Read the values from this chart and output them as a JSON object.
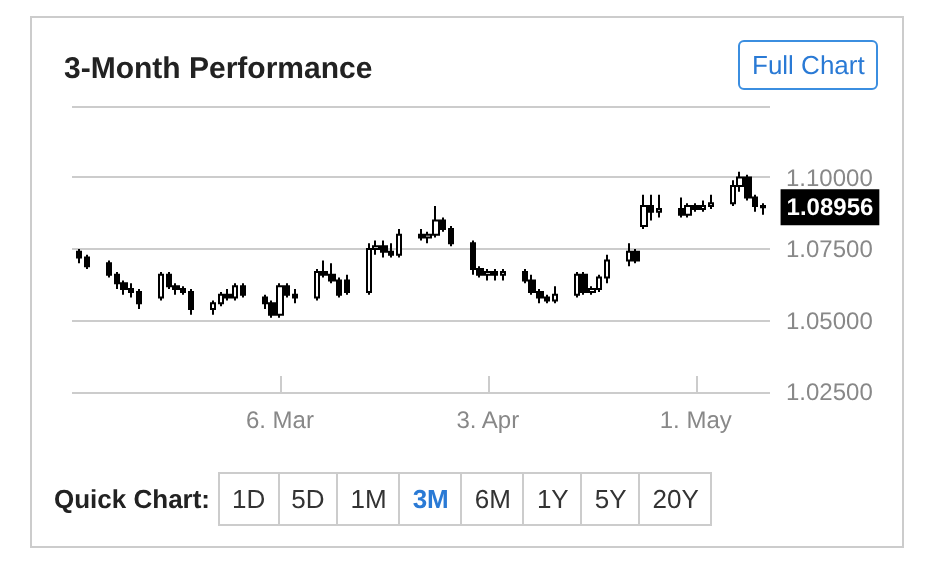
{
  "chart_data": {
    "type": "candlestick",
    "title": "3-Month Performance",
    "color": "#000000",
    "grid": "y",
    "x": [
      "--02-08",
      "--02-09",
      "--02-12",
      "--02-13",
      "--02-14",
      "--02-15",
      "--02-16",
      "--02-19",
      "--02-20",
      "--02-21",
      "--02-22",
      "--02-23",
      "--02-26",
      "--02-27",
      "--02-28",
      "--02-29",
      "--03-01",
      "--03-04",
      "--03-05",
      "--03-06",
      "--03-07",
      "--03-08",
      "--03-11",
      "--03-12",
      "--03-13",
      "--03-14",
      "--03-15",
      "--03-18",
      "--03-19",
      "--03-20",
      "--03-21",
      "--03-22",
      "--03-25",
      "--03-26",
      "--03-27",
      "--03-28",
      "--03-29",
      "--04-01",
      "--04-02",
      "--04-03",
      "--04-04",
      "--04-05",
      "--04-08",
      "--04-09",
      "--04-10",
      "--04-11",
      "--04-12",
      "--04-15",
      "--04-16",
      "--04-17",
      "--04-18",
      "--04-19",
      "--04-22",
      "--04-23",
      "--04-24",
      "--04-25",
      "--04-26",
      "--04-29",
      "--04-30",
      "--05-01",
      "--05-02",
      "--05-03",
      "--05-06",
      "--05-07",
      "--05-08",
      "--05-09",
      "--05-10"
    ],
    "ohlc": [
      [
        1.074,
        1.075,
        1.07,
        1.072
      ],
      [
        1.072,
        1.073,
        1.068,
        1.069
      ],
      [
        1.07,
        1.071,
        1.065,
        1.066
      ],
      [
        1.066,
        1.067,
        1.061,
        1.063
      ],
      [
        1.063,
        1.064,
        1.059,
        1.061
      ],
      [
        1.061,
        1.063,
        1.058,
        1.06
      ],
      [
        1.06,
        1.061,
        1.054,
        1.056
      ],
      [
        1.058,
        1.067,
        1.057,
        1.066
      ],
      [
        1.066,
        1.067,
        1.061,
        1.062
      ],
      [
        1.062,
        1.063,
        1.059,
        1.061
      ],
      [
        1.061,
        1.062,
        1.059,
        1.06
      ],
      [
        1.06,
        1.061,
        1.052,
        1.054
      ],
      [
        1.054,
        1.057,
        1.052,
        1.056
      ],
      [
        1.056,
        1.06,
        1.055,
        1.059
      ],
      [
        1.059,
        1.061,
        1.057,
        1.058
      ],
      [
        1.058,
        1.063,
        1.057,
        1.062
      ],
      [
        1.062,
        1.063,
        1.058,
        1.059
      ],
      [
        1.058,
        1.059,
        1.054,
        1.056
      ],
      [
        1.056,
        1.057,
        1.051,
        1.052
      ],
      [
        1.052,
        1.063,
        1.051,
        1.062
      ],
      [
        1.062,
        1.063,
        1.058,
        1.059
      ],
      [
        1.059,
        1.061,
        1.056,
        1.058
      ],
      [
        1.058,
        1.068,
        1.057,
        1.067
      ],
      [
        1.067,
        1.071,
        1.065,
        1.066
      ],
      [
        1.066,
        1.07,
        1.063,
        1.064
      ],
      [
        1.064,
        1.065,
        1.058,
        1.059
      ],
      [
        1.064,
        1.066,
        1.059,
        1.06
      ],
      [
        1.06,
        1.077,
        1.059,
        1.075
      ],
      [
        1.075,
        1.078,
        1.073,
        1.076
      ],
      [
        1.076,
        1.078,
        1.072,
        1.074
      ],
      [
        1.074,
        1.077,
        1.072,
        1.073
      ],
      [
        1.073,
        1.082,
        1.072,
        1.08
      ],
      [
        1.08,
        1.082,
        1.078,
        1.079
      ],
      [
        1.079,
        1.081,
        1.077,
        1.08
      ],
      [
        1.08,
        1.09,
        1.079,
        1.085
      ],
      [
        1.085,
        1.086,
        1.081,
        1.082
      ],
      [
        1.082,
        1.083,
        1.076,
        1.077
      ],
      [
        1.077,
        1.078,
        1.066,
        1.068
      ],
      [
        1.068,
        1.069,
        1.065,
        1.066
      ],
      [
        1.066,
        1.068,
        1.064,
        1.067
      ],
      [
        1.067,
        1.068,
        1.064,
        1.066
      ],
      [
        1.066,
        1.068,
        1.064,
        1.067
      ],
      [
        1.067,
        1.068,
        1.063,
        1.064
      ],
      [
        1.064,
        1.066,
        1.059,
        1.06
      ],
      [
        1.06,
        1.061,
        1.056,
        1.058
      ],
      [
        1.058,
        1.059,
        1.056,
        1.057
      ],
      [
        1.057,
        1.062,
        1.056,
        1.059
      ],
      [
        1.059,
        1.067,
        1.058,
        1.066
      ],
      [
        1.066,
        1.067,
        1.059,
        1.06
      ],
      [
        1.06,
        1.062,
        1.059,
        1.061
      ],
      [
        1.061,
        1.066,
        1.06,
        1.065
      ],
      [
        1.065,
        1.073,
        1.063,
        1.071
      ],
      [
        1.071,
        1.077,
        1.069,
        1.074
      ],
      [
        1.074,
        1.075,
        1.07,
        1.071
      ],
      [
        1.083,
        1.094,
        1.082,
        1.09
      ],
      [
        1.09,
        1.094,
        1.085,
        1.088
      ],
      [
        1.088,
        1.094,
        1.086,
        1.089
      ],
      [
        1.089,
        1.093,
        1.086,
        1.087
      ],
      [
        1.087,
        1.091,
        1.086,
        1.09
      ],
      [
        1.09,
        1.091,
        1.088,
        1.089
      ],
      [
        1.089,
        1.092,
        1.088,
        1.09
      ],
      [
        1.09,
        1.094,
        1.089,
        1.091
      ],
      [
        1.091,
        1.099,
        1.09,
        1.097
      ],
      [
        1.097,
        1.102,
        1.095,
        1.1
      ],
      [
        1.1,
        1.101,
        1.092,
        1.093
      ],
      [
        1.093,
        1.094,
        1.088,
        1.09
      ],
      [
        1.09,
        1.091,
        1.087,
        1.08956
      ]
    ],
    "xlim": [
      "--02-07",
      "--05-11"
    ],
    "xticks": [
      {
        "value": "--03-06",
        "label": "6. Mar"
      },
      {
        "value": "--04-03",
        "label": "3. Apr"
      },
      {
        "value": "--05-01",
        "label": "1. May"
      }
    ],
    "ylim": [
      1.025,
      1.125
    ],
    "yticks": [
      {
        "value": 1.025,
        "label": "1.02500"
      },
      {
        "value": 1.05,
        "label": "1.05000"
      },
      {
        "value": 1.075,
        "label": "1.07500"
      },
      {
        "value": 1.1,
        "label": "1.10000"
      },
      {
        "value": 1.125,
        "label": null
      }
    ],
    "annotations": [
      "Full Chart",
      "Quick Chart:",
      "1D",
      "5D",
      "1M",
      "3M",
      "6M",
      "1Y",
      "5Y",
      "20Y",
      {
        "text": "1.08956",
        "x": "--05-10",
        "y": 1.08956
      }
    ]
  }
}
